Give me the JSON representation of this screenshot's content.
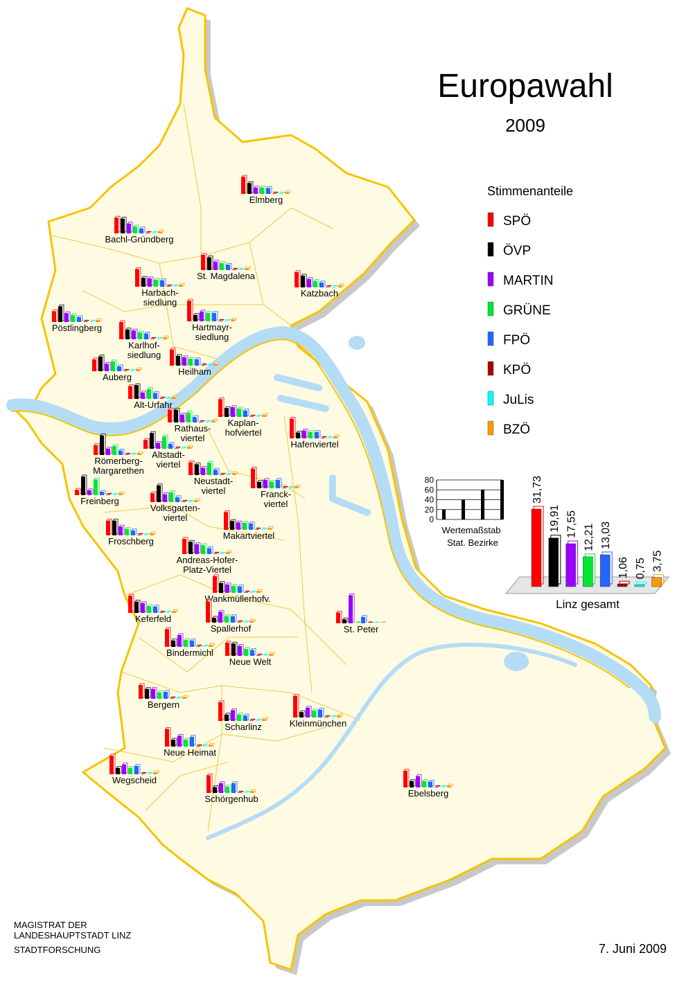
{
  "title": "Europawahl",
  "subtitle": "2009",
  "legend": {
    "title": "Stimmenanteile",
    "parties": [
      {
        "name": "SPÖ",
        "color": "#ff0000"
      },
      {
        "name": "ÖVP",
        "color": "#000000"
      },
      {
        "name": "MARTIN",
        "color": "#9900ff"
      },
      {
        "name": "GRÜNE",
        "color": "#00e633"
      },
      {
        "name": "FPÖ",
        "color": "#2266ff"
      },
      {
        "name": "KPÖ",
        "color": "#aa0000"
      },
      {
        "name": "JuLis",
        "color": "#00ffff"
      },
      {
        "name": "BZÖ",
        "color": "#ff9900"
      }
    ]
  },
  "scale_chart": {
    "type": "bar",
    "values": [
      20,
      40,
      60,
      80
    ],
    "ylim": [
      0,
      80
    ],
    "yticks": [
      0,
      20,
      40,
      60,
      80
    ],
    "label": [
      "Wertemaßstab",
      "Stat. Bezirke"
    ]
  },
  "total_chart": {
    "type": "bar",
    "title": "Linz gesamt",
    "values": [
      31.73,
      19.91,
      17.55,
      12.21,
      13.03,
      1.06,
      0.75,
      3.75
    ],
    "value_labels": [
      "31,73",
      "19,91",
      "17,55",
      "12,21",
      "13,03",
      "1,06",
      "0,75",
      "3,75"
    ]
  },
  "districts": [
    {
      "name": [
        "Elmberg"
      ],
      "values": [
        35,
        22,
        13,
        13,
        12,
        1,
        1,
        4
      ]
    },
    {
      "name": [
        "Bachl-Gründberg"
      ],
      "values": [
        32,
        30,
        20,
        14,
        10,
        1,
        1,
        4
      ]
    },
    {
      "name": [
        "St. Magdalena"
      ],
      "values": [
        31,
        26,
        17,
        14,
        11,
        1,
        1,
        4
      ]
    },
    {
      "name": [
        "Katzbach"
      ],
      "values": [
        31,
        24,
        17,
        13,
        10,
        1,
        1,
        4
      ]
    },
    {
      "name": [
        "Harbach-",
        "siedlung"
      ],
      "values": [
        36,
        18,
        17,
        14,
        13,
        1,
        1,
        4
      ]
    },
    {
      "name": [
        "Hartmayr-",
        "siedlung"
      ],
      "values": [
        42,
        13,
        20,
        17,
        17,
        1,
        1,
        4
      ]
    },
    {
      "name": [
        "Pöstlingberg"
      ],
      "values": [
        22,
        32,
        18,
        14,
        10,
        1,
        1,
        4
      ]
    },
    {
      "name": [
        "Karlhof-",
        "siedlung"
      ],
      "values": [
        35,
        20,
        18,
        14,
        12,
        1,
        1,
        4
      ]
    },
    {
      "name": [
        "Auberg"
      ],
      "values": [
        24,
        30,
        15,
        20,
        10,
        1,
        1,
        4
      ]
    },
    {
      "name": [
        "Heilham"
      ],
      "values": [
        33,
        20,
        17,
        14,
        13,
        1,
        1,
        4
      ]
    },
    {
      "name": [
        "Alt-Urfahr"
      ],
      "values": [
        26,
        28,
        13,
        20,
        12,
        1,
        1,
        4
      ]
    },
    {
      "name": [
        "Rathaus-",
        "viertel"
      ],
      "values": [
        26,
        26,
        16,
        20,
        11,
        1,
        1,
        4
      ]
    },
    {
      "name": [
        "Kaplan-",
        "hofviertel"
      ],
      "values": [
        36,
        18,
        20,
        17,
        13,
        1,
        1,
        4
      ]
    },
    {
      "name": [
        "Hafenviertel"
      ],
      "values": [
        40,
        12,
        16,
        13,
        13,
        1,
        1,
        4
      ]
    },
    {
      "name": [
        "Römerberg-",
        "Margarethen"
      ],
      "values": [
        20,
        40,
        13,
        18,
        9,
        1,
        1,
        4
      ]
    },
    {
      "name": [
        "Altstadt-",
        "viertel"
      ],
      "values": [
        18,
        32,
        12,
        25,
        10,
        1,
        1,
        4
      ]
    },
    {
      "name": [
        "Neustadt-",
        "viertel"
      ],
      "values": [
        26,
        22,
        15,
        25,
        11,
        1,
        1,
        4
      ]
    },
    {
      "name": [
        "Franck-",
        "viertel"
      ],
      "values": [
        40,
        13,
        17,
        13,
        17,
        1,
        1,
        4
      ]
    },
    {
      "name": [
        "Freinberg"
      ],
      "values": [
        11,
        38,
        10,
        32,
        7,
        1,
        1,
        4
      ]
    },
    {
      "name": [
        "Volksgarten-",
        "viertel"
      ],
      "values": [
        18,
        34,
        16,
        20,
        10,
        1,
        1,
        4
      ]
    },
    {
      "name": [
        "Froschberg"
      ],
      "values": [
        30,
        30,
        18,
        13,
        10,
        1,
        1,
        4
      ]
    },
    {
      "name": [
        "Makartviertel"
      ],
      "values": [
        36,
        18,
        15,
        14,
        13,
        1,
        1,
        4
      ]
    },
    {
      "name": [
        "Andreas-Hofer-",
        "Platz-Viertel"
      ],
      "values": [
        31,
        25,
        20,
        18,
        12,
        1,
        1,
        4
      ]
    },
    {
      "name": [
        "Wankmüllerhofv."
      ],
      "values": [
        34,
        20,
        17,
        14,
        13,
        1,
        1,
        4
      ]
    },
    {
      "name": [
        "Keferfeld"
      ],
      "values": [
        35,
        23,
        20,
        14,
        13,
        1,
        1,
        4
      ]
    },
    {
      "name": [
        "Spallerhof"
      ],
      "values": [
        43,
        10,
        22,
        13,
        13,
        1,
        1,
        4
      ]
    },
    {
      "name": [
        "St. Peter"
      ],
      "values": [
        22,
        8,
        57,
        0,
        13,
        0,
        0,
        0
      ]
    },
    {
      "name": [
        "Bindermichl"
      ],
      "values": [
        36,
        13,
        24,
        14,
        13,
        1,
        1,
        4
      ]
    },
    {
      "name": [
        "Neue Welt"
      ],
      "values": [
        27,
        25,
        20,
        14,
        12,
        1,
        1,
        4
      ]
    },
    {
      "name": [
        "Bergern"
      ],
      "values": [
        28,
        20,
        20,
        13,
        14,
        1,
        1,
        4
      ]
    },
    {
      "name": [
        "Scharlinz"
      ],
      "values": [
        38,
        13,
        22,
        13,
        11,
        1,
        1,
        4
      ]
    },
    {
      "name": [
        "Kleinmünchen"
      ],
      "values": [
        44,
        11,
        20,
        14,
        16,
        1,
        1,
        4
      ]
    },
    {
      "name": [
        "Neue Heimat"
      ],
      "values": [
        36,
        14,
        22,
        14,
        20,
        1,
        1,
        4
      ]
    },
    {
      "name": [
        "Wegscheid"
      ],
      "values": [
        38,
        13,
        20,
        13,
        17,
        1,
        1,
        4
      ]
    },
    {
      "name": [
        "Schörgenhub"
      ],
      "values": [
        36,
        12,
        20,
        13,
        20,
        1,
        1,
        4
      ]
    },
    {
      "name": [
        "Ebelsberg"
      ],
      "values": [
        34,
        13,
        23,
        13,
        12,
        1,
        1,
        4
      ]
    }
  ],
  "footer": {
    "institution": [
      "MAGISTRAT  DER",
      "LANDESHAUPTSTADT  LINZ",
      "STADTFORSCHUNG"
    ],
    "date": "7. Juni 2009"
  }
}
